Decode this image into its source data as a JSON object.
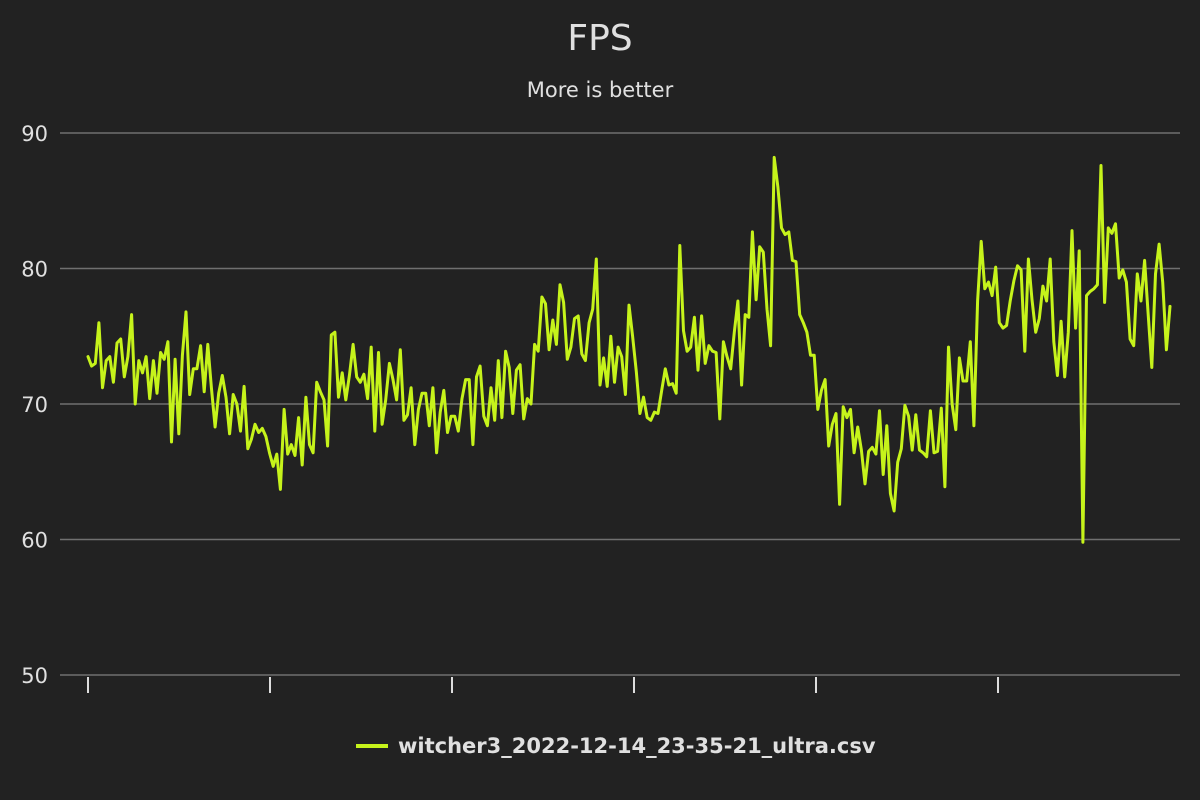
{
  "chart_data": {
    "type": "line",
    "title": "FPS",
    "subtitle": "More is better",
    "xlabel": "",
    "ylabel": "",
    "ylim": [
      50,
      90
    ],
    "yticks": [
      50,
      60,
      70,
      80,
      90
    ],
    "xticks_count": 6,
    "grid": true,
    "legend_position": "bottom",
    "colors": {
      "background": "#222222",
      "series": "#c6f31b",
      "grid": "#707070",
      "text": "#e0e0e0"
    },
    "series": [
      {
        "name": "witcher3_2022-12-14_23-35-21_ultra.csv",
        "values": [
          73.5,
          72.8,
          73.0,
          76.0,
          71.2,
          73.2,
          73.5,
          71.6,
          74.5,
          74.8,
          72.0,
          73.5,
          76.6,
          70.0,
          73.2,
          72.3,
          73.5,
          70.4,
          73.2,
          70.8,
          73.8,
          73.3,
          74.6,
          67.2,
          73.3,
          67.8,
          73.6,
          76.8,
          70.7,
          72.6,
          72.6,
          74.3,
          70.9,
          74.4,
          71.2,
          68.3,
          70.8,
          72.1,
          70.5,
          67.8,
          70.7,
          70.0,
          68.0,
          71.3,
          66.7,
          67.4,
          68.5,
          67.9,
          68.2,
          67.6,
          66.4,
          65.4,
          66.3,
          63.7,
          69.6,
          66.3,
          67.0,
          66.2,
          69.0,
          65.5,
          70.5,
          67.0,
          66.4,
          71.6,
          70.9,
          70.3,
          66.9,
          75.1,
          75.3,
          70.5,
          72.3,
          70.3,
          72.1,
          74.4,
          72.0,
          71.6,
          72.2,
          70.4,
          74.2,
          68.0,
          73.8,
          68.5,
          70.3,
          73.0,
          71.8,
          70.3,
          74.0,
          68.8,
          69.2,
          71.2,
          67.0,
          69.6,
          70.8,
          70.8,
          68.4,
          71.2,
          66.4,
          69.4,
          71.0,
          67.9,
          69.1,
          69.1,
          68.0,
          70.4,
          71.8,
          71.8,
          67.0,
          72.0,
          72.8,
          69.1,
          68.4,
          71.2,
          68.8,
          73.2,
          69.0,
          73.9,
          72.7,
          69.3,
          72.5,
          72.9,
          68.9,
          70.4,
          70.0,
          74.4,
          73.9,
          77.9,
          77.4,
          74.0,
          76.2,
          74.4,
          78.8,
          77.5,
          73.3,
          74.2,
          76.3,
          76.5,
          73.7,
          73.2,
          76.0,
          77.0,
          80.7,
          71.4,
          73.4,
          71.3,
          75.0,
          71.6,
          74.2,
          73.5,
          70.7,
          77.3,
          75.0,
          72.4,
          69.3,
          70.5,
          69.0,
          68.8,
          69.4,
          69.3,
          71.0,
          72.6,
          71.4,
          71.5,
          70.8,
          81.7,
          75.4,
          73.9,
          74.2,
          76.4,
          72.5,
          76.5,
          73.0,
          74.3,
          73.9,
          73.8,
          68.9,
          74.6,
          73.5,
          72.6,
          75.3,
          77.6,
          71.4,
          76.6,
          76.4,
          82.7,
          77.7,
          81.6,
          81.2,
          77.0,
          74.3,
          88.2,
          86.0,
          83.0,
          82.5,
          82.7,
          80.6,
          80.5,
          76.6,
          76.0,
          75.3,
          73.6,
          73.6,
          69.6,
          71.0,
          71.8,
          66.9,
          68.5,
          69.3,
          62.6,
          69.8,
          69.0,
          69.6,
          66.4,
          68.3,
          66.6,
          64.1,
          66.5,
          66.8,
          66.3,
          69.5,
          64.8,
          68.4,
          63.4,
          62.1,
          65.7,
          66.7,
          69.9,
          69.1,
          66.6,
          69.2,
          66.6,
          66.4,
          66.1,
          69.5,
          66.4,
          66.5,
          69.7,
          63.9,
          74.2,
          70.0,
          68.1,
          73.4,
          71.7,
          71.7,
          74.6,
          68.4,
          77.6,
          82.0,
          78.5,
          79.0,
          78.0,
          80.1,
          76.0,
          75.6,
          75.8,
          77.6,
          79.1,
          80.2,
          79.9,
          73.9,
          80.7,
          77.7,
          75.3,
          76.3,
          78.7,
          77.6,
          80.7,
          74.6,
          72.1,
          76.1,
          72.0,
          75.3,
          82.8,
          75.6,
          81.3,
          59.8,
          78.0,
          78.3,
          78.5,
          78.8,
          87.6,
          77.5,
          83.0,
          82.6,
          83.3,
          79.3,
          79.9,
          79.0,
          74.8,
          74.3,
          79.6,
          77.6,
          80.6,
          76.6,
          72.7,
          79.6,
          81.8,
          79.0,
          74.0,
          77.2
        ]
      }
    ]
  }
}
